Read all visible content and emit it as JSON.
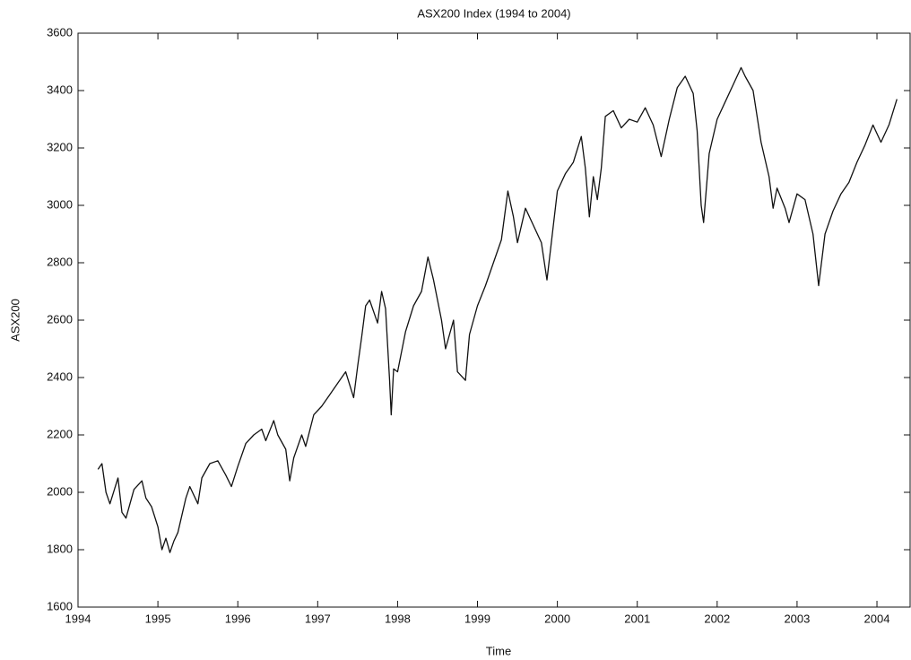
{
  "chart_data": {
    "type": "line",
    "title": "ASX200 Index (1994 to 2004)",
    "x_label": "Time",
    "y_label": "ASX200",
    "color": "#111111",
    "xlim": [
      1994,
      2004.415
    ],
    "ylim": [
      1600,
      3600
    ],
    "xticks": [
      1994,
      1995,
      1996,
      1997,
      1998,
      1999,
      2000,
      2001,
      2002,
      2003,
      2004
    ],
    "yticks": [
      1600,
      1800,
      2000,
      2200,
      2400,
      2600,
      2800,
      3000,
      3200,
      3400,
      3600
    ],
    "grid": false,
    "x": [
      1994.25,
      1994.3,
      1994.35,
      1994.4,
      1994.5,
      1994.55,
      1994.6,
      1994.7,
      1994.8,
      1994.85,
      1994.92,
      1995.0,
      1995.05,
      1995.1,
      1995.15,
      1995.2,
      1995.25,
      1995.35,
      1995.4,
      1995.5,
      1995.55,
      1995.65,
      1995.75,
      1995.85,
      1995.92,
      1996.0,
      1996.1,
      1996.2,
      1996.3,
      1996.35,
      1996.45,
      1996.5,
      1996.6,
      1996.65,
      1996.7,
      1996.8,
      1996.85,
      1996.95,
      1997.05,
      1997.15,
      1997.25,
      1997.35,
      1997.45,
      1997.5,
      1997.55,
      1997.6,
      1997.65,
      1997.75,
      1997.8,
      1997.85,
      1997.9,
      1997.92,
      1997.95,
      1998.0,
      1998.1,
      1998.2,
      1998.3,
      1998.38,
      1998.45,
      1998.55,
      1998.6,
      1998.7,
      1998.75,
      1998.85,
      1998.9,
      1999.0,
      1999.1,
      1999.2,
      1999.3,
      1999.38,
      1999.45,
      1999.5,
      1999.6,
      1999.7,
      1999.8,
      1999.87,
      1999.92,
      2000.0,
      2000.1,
      2000.2,
      2000.3,
      2000.35,
      2000.4,
      2000.45,
      2000.5,
      2000.55,
      2000.6,
      2000.7,
      2000.8,
      2000.9,
      2001.0,
      2001.1,
      2001.2,
      2001.3,
      2001.4,
      2001.5,
      2001.6,
      2001.7,
      2001.75,
      2001.8,
      2001.83,
      2001.9,
      2002.0,
      2002.1,
      2002.2,
      2002.3,
      2002.35,
      2002.45,
      2002.55,
      2002.65,
      2002.7,
      2002.75,
      2002.85,
      2002.9,
      2003.0,
      2003.1,
      2003.2,
      2003.27,
      2003.35,
      2003.45,
      2003.55,
      2003.65,
      2003.75,
      2003.85,
      2003.95,
      2004.05,
      2004.15,
      2004.25
    ],
    "values": [
      2080,
      2100,
      2000,
      1960,
      2050,
      1930,
      1910,
      2010,
      2040,
      1980,
      1950,
      1880,
      1800,
      1840,
      1790,
      1830,
      1860,
      1980,
      2020,
      1960,
      2050,
      2100,
      2110,
      2060,
      2020,
      2090,
      2170,
      2200,
      2220,
      2180,
      2250,
      2200,
      2150,
      2040,
      2120,
      2200,
      2160,
      2270,
      2300,
      2340,
      2380,
      2420,
      2330,
      2440,
      2540,
      2650,
      2670,
      2590,
      2700,
      2640,
      2390,
      2270,
      2430,
      2420,
      2560,
      2650,
      2700,
      2820,
      2740,
      2600,
      2500,
      2600,
      2420,
      2390,
      2550,
      2650,
      2720,
      2800,
      2880,
      3050,
      2960,
      2870,
      2990,
      2930,
      2870,
      2740,
      2860,
      3050,
      3110,
      3150,
      3240,
      3130,
      2960,
      3100,
      3020,
      3130,
      3310,
      3330,
      3270,
      3300,
      3290,
      3340,
      3280,
      3170,
      3300,
      3410,
      3450,
      3390,
      3260,
      3000,
      2940,
      3180,
      3300,
      3360,
      3420,
      3480,
      3450,
      3400,
      3220,
      3100,
      2990,
      3060,
      2990,
      2940,
      3040,
      3020,
      2900,
      2720,
      2900,
      2980,
      3040,
      3080,
      3150,
      3210,
      3280,
      3220,
      3280,
      3370
    ]
  }
}
